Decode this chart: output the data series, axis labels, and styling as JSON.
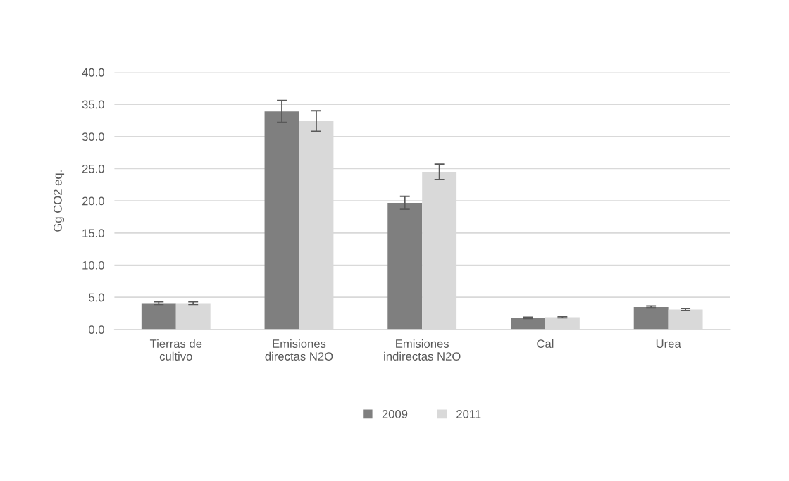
{
  "chart_data": {
    "type": "bar",
    "ylabel": "Gg CO2 eq.",
    "categories": [
      "Tierras de\ncultivo",
      "Emisiones\ndirectas N2O",
      "Emisiones\nindirectas N2O",
      "Cal",
      "Urea"
    ],
    "series": [
      {
        "name": "2009",
        "color": "#7f7f7f",
        "values": [
          4.1,
          33.9,
          19.7,
          1.8,
          3.5
        ],
        "errors": [
          0.2,
          1.7,
          1.0,
          0.1,
          0.15
        ]
      },
      {
        "name": "2011",
        "color": "#d9d9d9",
        "values": [
          4.1,
          32.4,
          24.5,
          1.9,
          3.1
        ],
        "errors": [
          0.2,
          1.6,
          1.2,
          0.1,
          0.15
        ]
      }
    ],
    "ylim": [
      0,
      40
    ],
    "yticks": [
      {
        "value": 0,
        "label": "0.0"
      },
      {
        "value": 5,
        "label": "5.0"
      },
      {
        "value": 10,
        "label": "10.0"
      },
      {
        "value": 15,
        "label": "15.0"
      },
      {
        "value": 20,
        "label": "20.0"
      },
      {
        "value": 25,
        "label": "25.0"
      },
      {
        "value": 30,
        "label": "30.0"
      },
      {
        "value": 35,
        "label": "35.0"
      },
      {
        "value": 40,
        "label": "40.0"
      }
    ],
    "grid": "y",
    "legend": "bottom"
  }
}
